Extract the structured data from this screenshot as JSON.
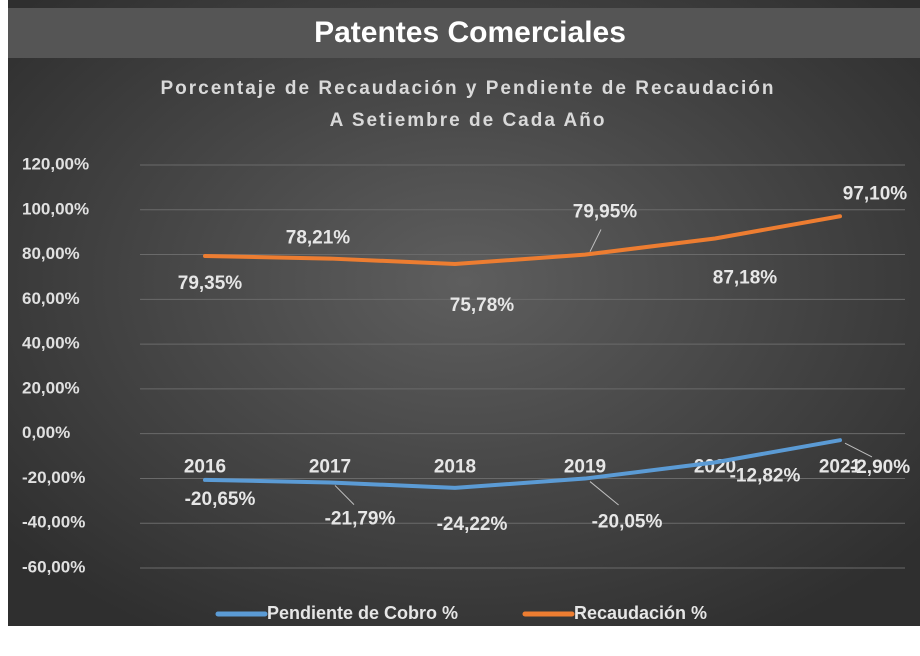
{
  "chart_data": {
    "type": "line",
    "title": "Patentes Comerciales",
    "subtitle": [
      "Porcentaje de Recaudación y Pendiente de Recaudación",
      "A Setiembre de Cada Año"
    ],
    "categories": [
      "2016",
      "2017",
      "2018",
      "2019",
      "2020",
      "2021"
    ],
    "series": [
      {
        "name": "Pendiente de Cobro %",
        "color": "#5b9bd5",
        "values": [
          -20.65,
          -21.79,
          -24.22,
          -20.05,
          -12.82,
          -2.9
        ],
        "value_labels": [
          "-20,65%",
          "-21,79%",
          "-24,22%",
          "-20,05%",
          "-12,82%",
          "-2,90%"
        ]
      },
      {
        "name": "Recaudación %",
        "color": "#ed7d31",
        "values": [
          79.35,
          78.21,
          75.78,
          79.95,
          87.18,
          97.1
        ],
        "value_labels": [
          "79,35%",
          "78,21%",
          "75,78%",
          "79,95%",
          "87,18%",
          "97,10%"
        ]
      }
    ],
    "ylim": [
      -60,
      120
    ],
    "yticks": [
      {
        "value": -60,
        "label": "-60,00%"
      },
      {
        "value": -40,
        "label": "-40,00%"
      },
      {
        "value": -20,
        "label": "-20,00%"
      },
      {
        "value": 0,
        "label": "0,00%"
      },
      {
        "value": 20,
        "label": "20,00%"
      },
      {
        "value": 40,
        "label": "40,00%"
      },
      {
        "value": 60,
        "label": "60,00%"
      },
      {
        "value": 80,
        "label": "80,00%"
      },
      {
        "value": 100,
        "label": "100,00%"
      },
      {
        "value": 120,
        "label": "120,00%"
      }
    ],
    "grid": true,
    "legend": "bottom"
  }
}
